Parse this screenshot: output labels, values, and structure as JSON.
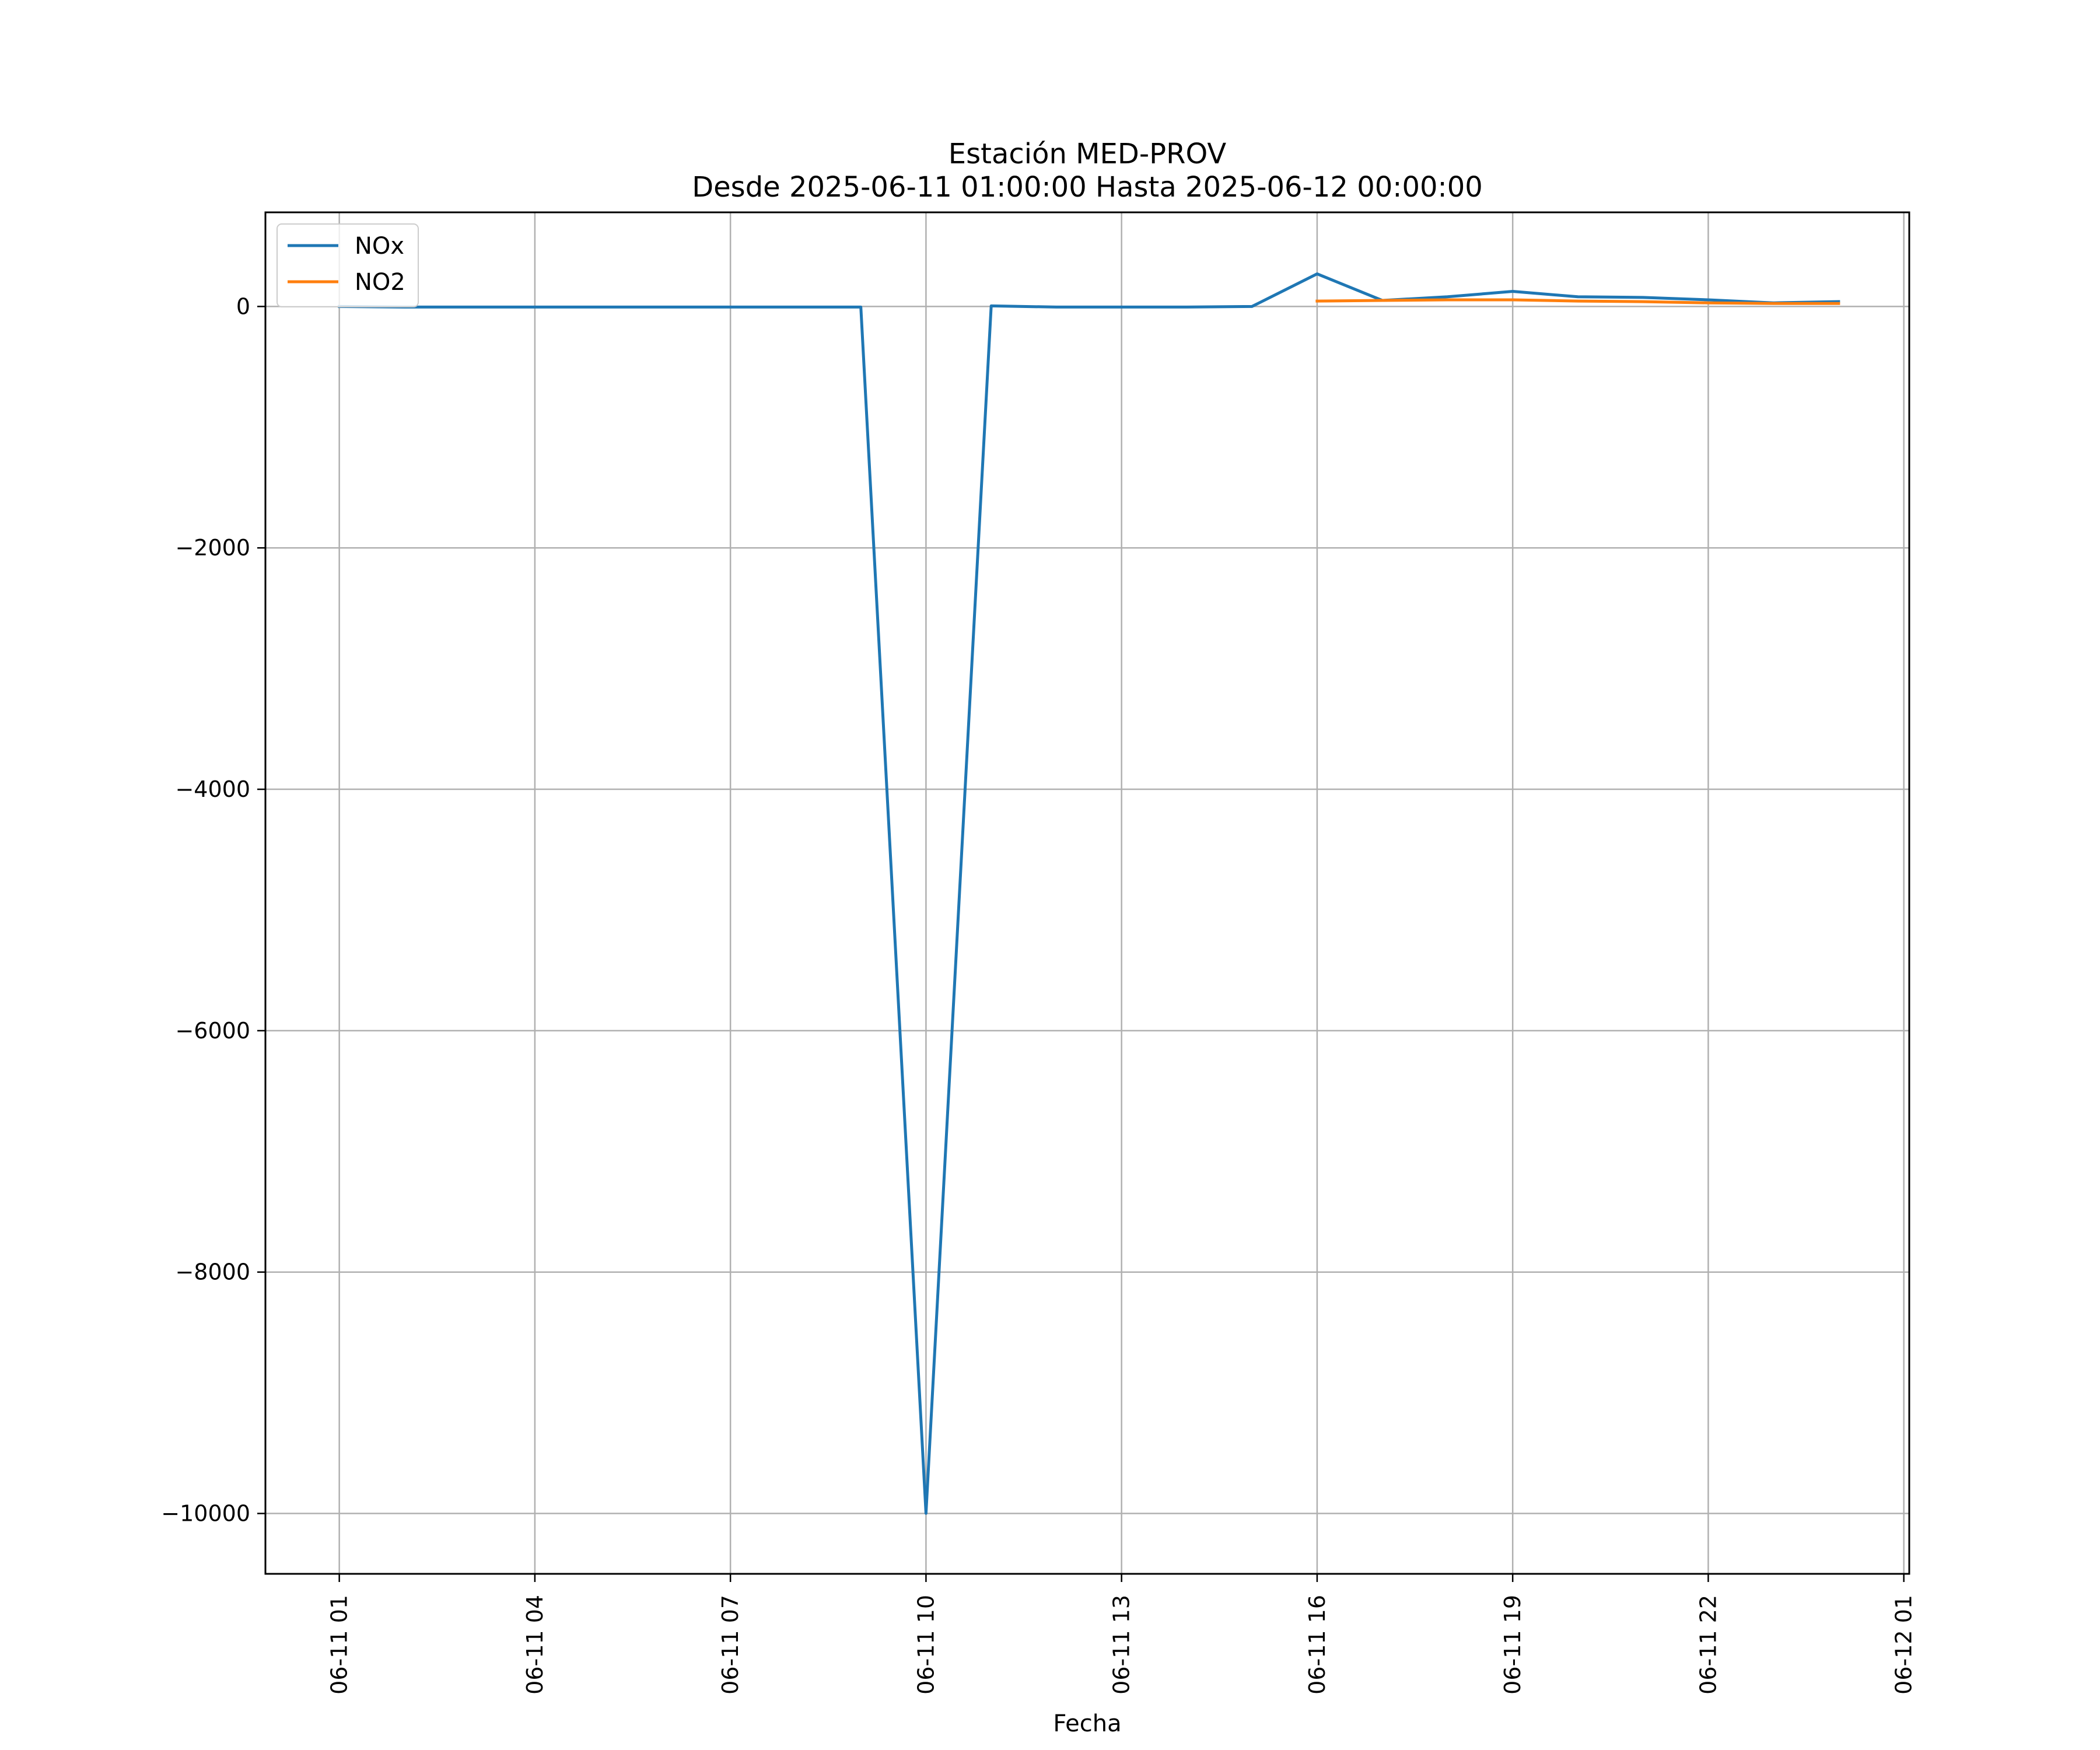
{
  "chart_data": {
    "type": "line",
    "title": "Estación MED-PROV",
    "subtitle": "Desde 2025-06-11 01:00:00 Hasta 2025-06-12 00:00:00",
    "xlabel": "Fecha",
    "ylabel": "",
    "x_tick_labels": [
      "06-11 01",
      "06-11 04",
      "06-11 07",
      "06-11 10",
      "06-11 13",
      "06-11 16",
      "06-11 19",
      "06-11 22",
      "06-12 01"
    ],
    "y_tick_labels": [
      "0",
      "−2000",
      "−4000",
      "−6000",
      "−8000",
      "−10000"
    ],
    "y_ticks": [
      0,
      -2000,
      -4000,
      -6000,
      -8000,
      -10000
    ],
    "x_ticks": [
      "2025-06-11 01:00",
      "2025-06-11 04:00",
      "2025-06-11 07:00",
      "2025-06-11 10:00",
      "2025-06-11 13:00",
      "2025-06-11 16:00",
      "2025-06-11 19:00",
      "2025-06-11 22:00",
      "2025-06-12 01:00"
    ],
    "xlim": [
      "2025-06-10 23:52",
      "2025-06-12 01:05"
    ],
    "ylim": [
      -10500,
      780
    ],
    "grid": true,
    "legend_position": "upper-left",
    "series": [
      {
        "name": "NOx",
        "color": "#1f77b4",
        "x": [
          "2025-06-11 01:00",
          "2025-06-11 02:00",
          "2025-06-11 03:00",
          "2025-06-11 04:00",
          "2025-06-11 05:00",
          "2025-06-11 06:00",
          "2025-06-11 07:00",
          "2025-06-11 08:00",
          "2025-06-11 09:00",
          "2025-06-11 10:00",
          "2025-06-11 11:00",
          "2025-06-11 12:00",
          "2025-06-11 13:00",
          "2025-06-11 14:00",
          "2025-06-11 15:00",
          "2025-06-11 16:00",
          "2025-06-11 17:00",
          "2025-06-11 18:00",
          "2025-06-11 19:00",
          "2025-06-11 20:00",
          "2025-06-11 21:00",
          "2025-06-11 22:00",
          "2025-06-11 23:00",
          "2025-06-12 00:00"
        ],
        "values": [
          0,
          -5,
          -5,
          -5,
          -5,
          -5,
          -5,
          -5,
          -5,
          -9999,
          5,
          -5,
          -5,
          -5,
          0,
          270,
          50,
          80,
          125,
          80,
          75,
          55,
          30,
          40
        ]
      },
      {
        "name": "NO2",
        "color": "#ff7f0e",
        "x": [
          "2025-06-11 16:00",
          "2025-06-11 17:00",
          "2025-06-11 18:00",
          "2025-06-11 19:00",
          "2025-06-11 20:00",
          "2025-06-11 21:00",
          "2025-06-11 22:00",
          "2025-06-11 23:00",
          "2025-06-12 00:00"
        ],
        "values": [
          45,
          50,
          55,
          55,
          45,
          40,
          30,
          25,
          25
        ]
      }
    ]
  }
}
